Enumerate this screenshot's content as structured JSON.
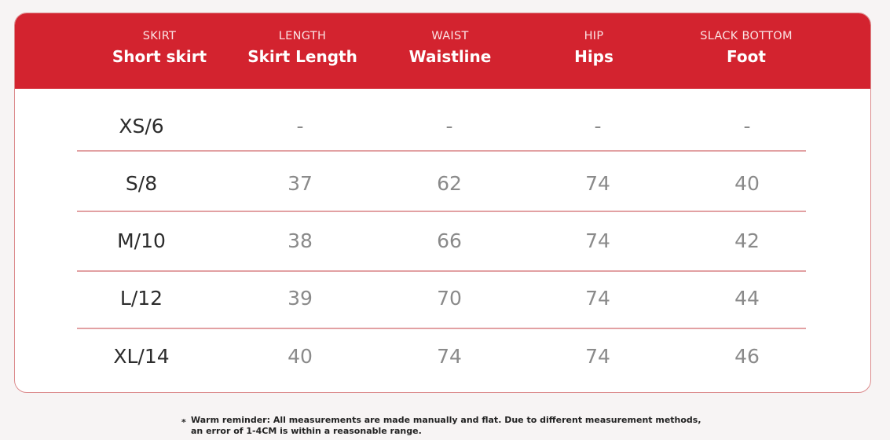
{
  "header": {
    "columns": [
      {
        "en": "SKIRT",
        "label": "Short skirt"
      },
      {
        "en": "LENGTH",
        "label": "Skirt Length"
      },
      {
        "en": "WAIST",
        "label": "Waistline"
      },
      {
        "en": "HIP",
        "label": "Hips"
      },
      {
        "en": "SLACK BOTTOM",
        "label": "Foot"
      }
    ]
  },
  "rows": [
    {
      "size": "XS/6",
      "values": [
        "-",
        "-",
        "-",
        "-"
      ]
    },
    {
      "size": "S/8",
      "values": [
        "37",
        "62",
        "74",
        "40"
      ]
    },
    {
      "size": "M/10",
      "values": [
        "38",
        "66",
        "74",
        "42"
      ]
    },
    {
      "size": "L/12",
      "values": [
        "39",
        "70",
        "74",
        "44"
      ]
    },
    {
      "size": "XL/14",
      "values": [
        "40",
        "74",
        "74",
        "46"
      ]
    }
  ],
  "note": {
    "star": "*",
    "text": "Warm reminder: All measurements are made manually and flat. Due to different measurement methods, an error of 1-4CM is within a reasonable range."
  },
  "colors": {
    "header_red": "#d3232f",
    "divider": "#e2a1a3",
    "border": "#dc8a8c"
  }
}
